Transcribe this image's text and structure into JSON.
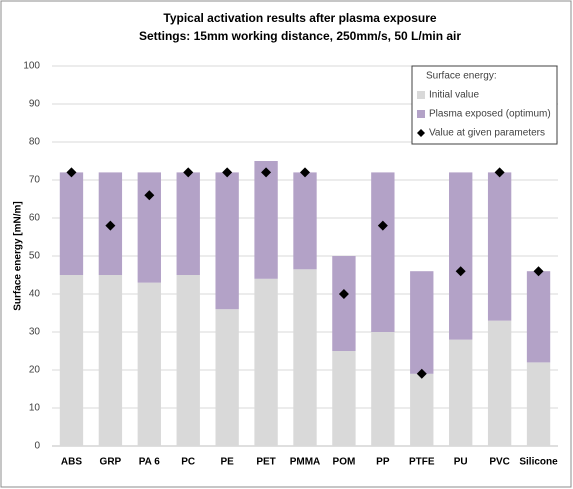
{
  "chart_data": {
    "type": "bar",
    "stacked": true,
    "title": "Typical activation results after plasma exposure",
    "subtitle": "Settings: 15mm working distance, 250mm/s, 50 L/min air",
    "y_label": "Surface energy [mN/m]",
    "legend_title": "Surface energy:",
    "legend_position": "top-right",
    "grid": true,
    "categories": [
      "ABS",
      "GRP",
      "PA 6",
      "PC",
      "PE",
      "PET",
      "PMMA",
      "POM",
      "PP",
      "PTFE",
      "PU",
      "PVC",
      "Silicone"
    ],
    "series": [
      {
        "name": "Initial value",
        "color": "#d9d9d9",
        "type": "bar",
        "values": [
          45,
          45,
          43,
          45,
          36,
          44,
          46.5,
          25,
          30,
          19,
          28,
          33,
          22
        ]
      },
      {
        "name": "Plasma exposed (optimum)",
        "color": "#b3a2c7",
        "type": "bar",
        "values": [
          27,
          27,
          29,
          27,
          36,
          31,
          25.5,
          25,
          42,
          27,
          44,
          39,
          24
        ]
      },
      {
        "name": "Value at given parameters",
        "color": "#000000",
        "type": "scatter",
        "marker": "diamond",
        "values": [
          72,
          58,
          66,
          72,
          72,
          72,
          72,
          40,
          58,
          19,
          46,
          72,
          46
        ]
      }
    ],
    "ylim": [
      0,
      100
    ],
    "yticks": [
      0,
      10,
      20,
      30,
      40,
      50,
      60,
      70,
      80,
      90,
      100
    ]
  }
}
